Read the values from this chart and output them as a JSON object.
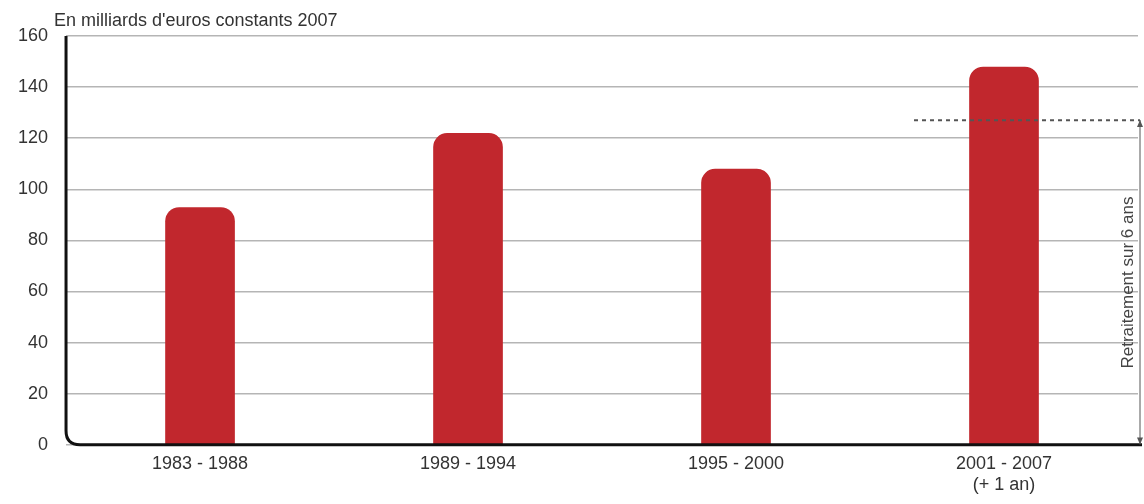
{
  "chart_data": {
    "type": "bar",
    "ylabel": "En milliards d'euros constants 2007",
    "categories": [
      "1983 - 1988",
      "1989 - 1994",
      "1995 - 2000",
      "2001 - 2007\n(+ 1 an)"
    ],
    "values": [
      93,
      122,
      108,
      148
    ],
    "color": "#c1272d",
    "ylim": [
      0,
      160
    ],
    "yticks": [
      0,
      20,
      40,
      60,
      80,
      100,
      120,
      140,
      160
    ],
    "grid": "y",
    "ref_lines": [
      {
        "axis": "y",
        "value": 127,
        "label": "Retraitement sur 6 ans",
        "line_style": "dashed",
        "color": "#555555"
      }
    ]
  }
}
